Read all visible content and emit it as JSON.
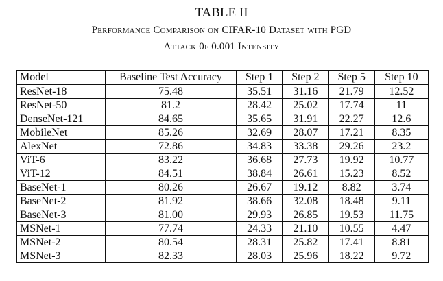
{
  "caption": {
    "label": "TABLE II",
    "title_line1": "Performance Comparison on CIFAR-10 Dataset with PGD",
    "title_line2": "Attack 0f 0.001 Intensity"
  },
  "table": {
    "headers": [
      "Model",
      "Baseline Test Accuracy",
      "Step 1",
      "Step 2",
      "Step 5",
      "Step 10"
    ],
    "rows": [
      [
        "ResNet-18",
        "75.48",
        "35.51",
        "31.16",
        "21.79",
        "12.52"
      ],
      [
        "ResNet-50",
        "81.2",
        "28.42",
        "25.02",
        "17.74",
        "11"
      ],
      [
        "DenseNet-121",
        "84.65",
        "35.65",
        "31.91",
        "22.27",
        "12.6"
      ],
      [
        "MobileNet",
        "85.26",
        "32.69",
        "28.07",
        "17.21",
        "8.35"
      ],
      [
        "AlexNet",
        "72.86",
        "34.83",
        "33.38",
        "29.26",
        "23.2"
      ],
      [
        "ViT-6",
        "83.22",
        "36.68",
        "27.73",
        "19.92",
        "10.77"
      ],
      [
        "ViT-12",
        "84.51",
        "38.84",
        "26.61",
        "15.23",
        "8.52"
      ],
      [
        "BaseNet-1",
        "80.26",
        "26.67",
        "19.12",
        "8.82",
        "3.74"
      ],
      [
        "BaseNet-2",
        "81.92",
        "38.66",
        "32.08",
        "18.48",
        "9.11"
      ],
      [
        "BaseNet-3",
        "81.00",
        "29.93",
        "26.85",
        "19.53",
        "11.75"
      ],
      [
        "MSNet-1",
        "77.74",
        "24.33",
        "21.10",
        "10.55",
        "4.47"
      ],
      [
        "MSNet-2",
        "80.54",
        "28.31",
        "25.82",
        "17.41",
        "8.81"
      ],
      [
        "MSNet-3",
        "82.33",
        "28.03",
        "25.96",
        "18.22",
        "9.72"
      ]
    ]
  }
}
